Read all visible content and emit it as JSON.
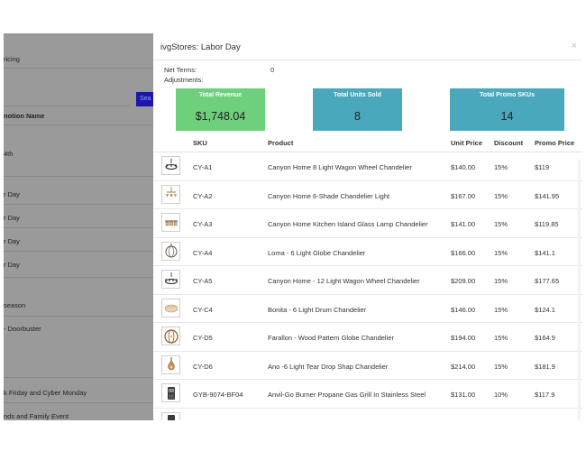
{
  "background_page": {
    "pricing_label": "ricing",
    "search_button": "Sea",
    "column_header": "notion Name",
    "rows": [
      "4th",
      "r Day",
      "r Day",
      "r Day",
      "r Day",
      "season",
      "- Doorbuster",
      "k Friday and Cyber Monday",
      "nds and Family Event"
    ]
  },
  "modal": {
    "title": "ivgStores: Labor Day",
    "close": "×",
    "net_terms_label": "Net Terms:",
    "net_terms_value": "0",
    "adjustments_label": "Adjustments:",
    "cards": [
      {
        "title": "Total Revenue",
        "value": "$1,748.04",
        "color": "#6ecf7d"
      },
      {
        "title": "Total Units Sold",
        "value": "8",
        "color": "#4aa8bd"
      },
      {
        "title": "Total Promo SKUs",
        "value": "14",
        "color": "#4aa8bd"
      }
    ],
    "columns": {
      "sku": "SKU",
      "product": "Product",
      "unit_price": "Unit Price",
      "discount": "Discount",
      "promo_price": "Promo Price"
    },
    "rows": [
      {
        "sku": "CY-A1",
        "product": "Canyon Home 8 Light Wagon Wheel Chandelier",
        "unit_price": "$140.00",
        "discount": "15%",
        "promo_price": "$119",
        "icon": "wagon-wheel-chandelier-icon"
      },
      {
        "sku": "CY-A2",
        "product": "Canyon Home 6-Shade Chandelier Light",
        "unit_price": "$167.00",
        "discount": "15%",
        "promo_price": "$141.95",
        "icon": "shade-chandelier-icon"
      },
      {
        "sku": "CY-A3",
        "product": "Canyon Home Kitchen Island Glass Lamp Chandelier",
        "unit_price": "$141.00",
        "discount": "15%",
        "promo_price": "$119.85",
        "icon": "island-chandelier-icon"
      },
      {
        "sku": "CY-A4",
        "product": "Loma - 6 Light Globe Chandelier",
        "unit_price": "$166.00",
        "discount": "15%",
        "promo_price": "$141.1",
        "icon": "globe-chandelier-icon"
      },
      {
        "sku": "CY-A5",
        "product": "Canyon Home - 12 Light Wagon Wheel Chandelier",
        "unit_price": "$209.00",
        "discount": "15%",
        "promo_price": "$177.65",
        "icon": "wagon-wheel-chandelier-icon"
      },
      {
        "sku": "CY-C4",
        "product": "Bonita - 6 Light Drum Chandelier",
        "unit_price": "$146.00",
        "discount": "15%",
        "promo_price": "$124.1",
        "icon": "drum-chandelier-icon"
      },
      {
        "sku": "CY-D5",
        "product": "Farallon - Wood Pattern Globe Chandelier",
        "unit_price": "$194.00",
        "discount": "15%",
        "promo_price": "$164.9",
        "icon": "wood-globe-chandelier-icon"
      },
      {
        "sku": "CY-D6",
        "product": "Ano -6 Light Tear Drop Shap Chandelier",
        "unit_price": "$214.00",
        "discount": "15%",
        "promo_price": "$181.9",
        "icon": "teardrop-chandelier-icon"
      },
      {
        "sku": "GYB-9074-BF04",
        "product": "Anvil-Go Burner Propane Gas Grill In Stainless Steel",
        "unit_price": "$131.00",
        "discount": "10%",
        "promo_price": "$117.9",
        "icon": "gas-grill-icon"
      }
    ]
  }
}
